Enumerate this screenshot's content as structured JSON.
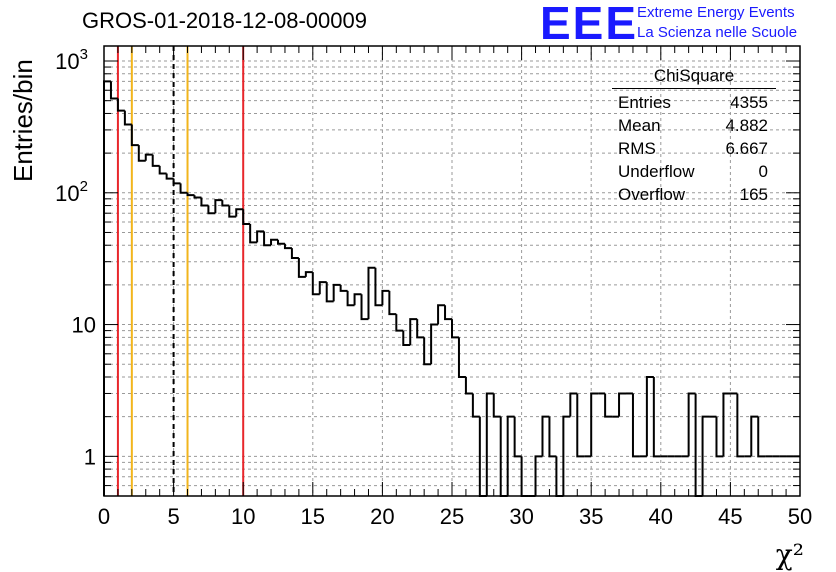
{
  "title": "GROS-01-2018-12-08-00009",
  "logo": {
    "letters": "EEE",
    "line1": "Extreme Energy Events",
    "line2": "La Scienza nelle Scuole",
    "color": "#1a1aff"
  },
  "stats": {
    "title": "ChiSquare",
    "rows": [
      {
        "label": "Entries",
        "value": "4355"
      },
      {
        "label": "Mean",
        "value": "4.882"
      },
      {
        "label": "RMS",
        "value": "6.667"
      },
      {
        "label": "Underflow",
        "value": "0"
      },
      {
        "label": "Overflow",
        "value": "165"
      }
    ]
  },
  "chart_data": {
    "type": "histogram",
    "ylabel": "Entries/bin",
    "xlabel": "χ²",
    "xlim": [
      0,
      50
    ],
    "ylim": [
      0.5,
      1300
    ],
    "yscale": "log",
    "grid": true,
    "bin_width": 0.5,
    "x_ticks": [
      "0",
      "5",
      "10",
      "15",
      "20",
      "25",
      "30",
      "35",
      "40",
      "45",
      "50"
    ],
    "y_ticks": [
      {
        "base": "1",
        "exp": ""
      },
      {
        "base": "10",
        "exp": ""
      },
      {
        "base": "10",
        "exp": "2"
      },
      {
        "base": "10",
        "exp": "3"
      }
    ],
    "values": [
      700,
      520,
      420,
      330,
      230,
      175,
      195,
      160,
      140,
      128,
      118,
      100,
      96,
      92,
      80,
      70,
      88,
      80,
      66,
      75,
      58,
      42,
      51,
      40,
      44,
      41,
      38,
      32,
      23,
      25,
      17,
      21,
      15,
      20,
      18,
      14,
      17,
      11,
      27,
      14,
      18,
      12,
      9,
      7,
      11,
      8,
      5,
      10,
      14,
      11,
      8,
      4,
      3,
      2,
      0.5,
      3,
      2,
      0.5,
      2,
      1,
      0.5,
      0.5,
      1,
      2,
      1,
      0.5,
      2,
      3,
      1,
      1,
      3,
      3,
      2,
      2,
      3,
      3,
      1,
      1,
      4,
      1,
      1,
      1,
      1,
      1,
      3,
      0.5,
      2,
      2,
      1,
      3,
      3,
      1,
      1,
      2,
      1,
      1,
      1,
      1,
      1,
      1
    ],
    "reference_lines": [
      {
        "x": 1,
        "color": "#e8262b",
        "style": "solid"
      },
      {
        "x": 2,
        "color": "#f2b51c",
        "style": "solid"
      },
      {
        "x": 5,
        "color": "#000000",
        "style": "dashed"
      },
      {
        "x": 6,
        "color": "#f2b51c",
        "style": "solid"
      },
      {
        "x": 10,
        "color": "#e8262b",
        "style": "solid"
      }
    ]
  }
}
